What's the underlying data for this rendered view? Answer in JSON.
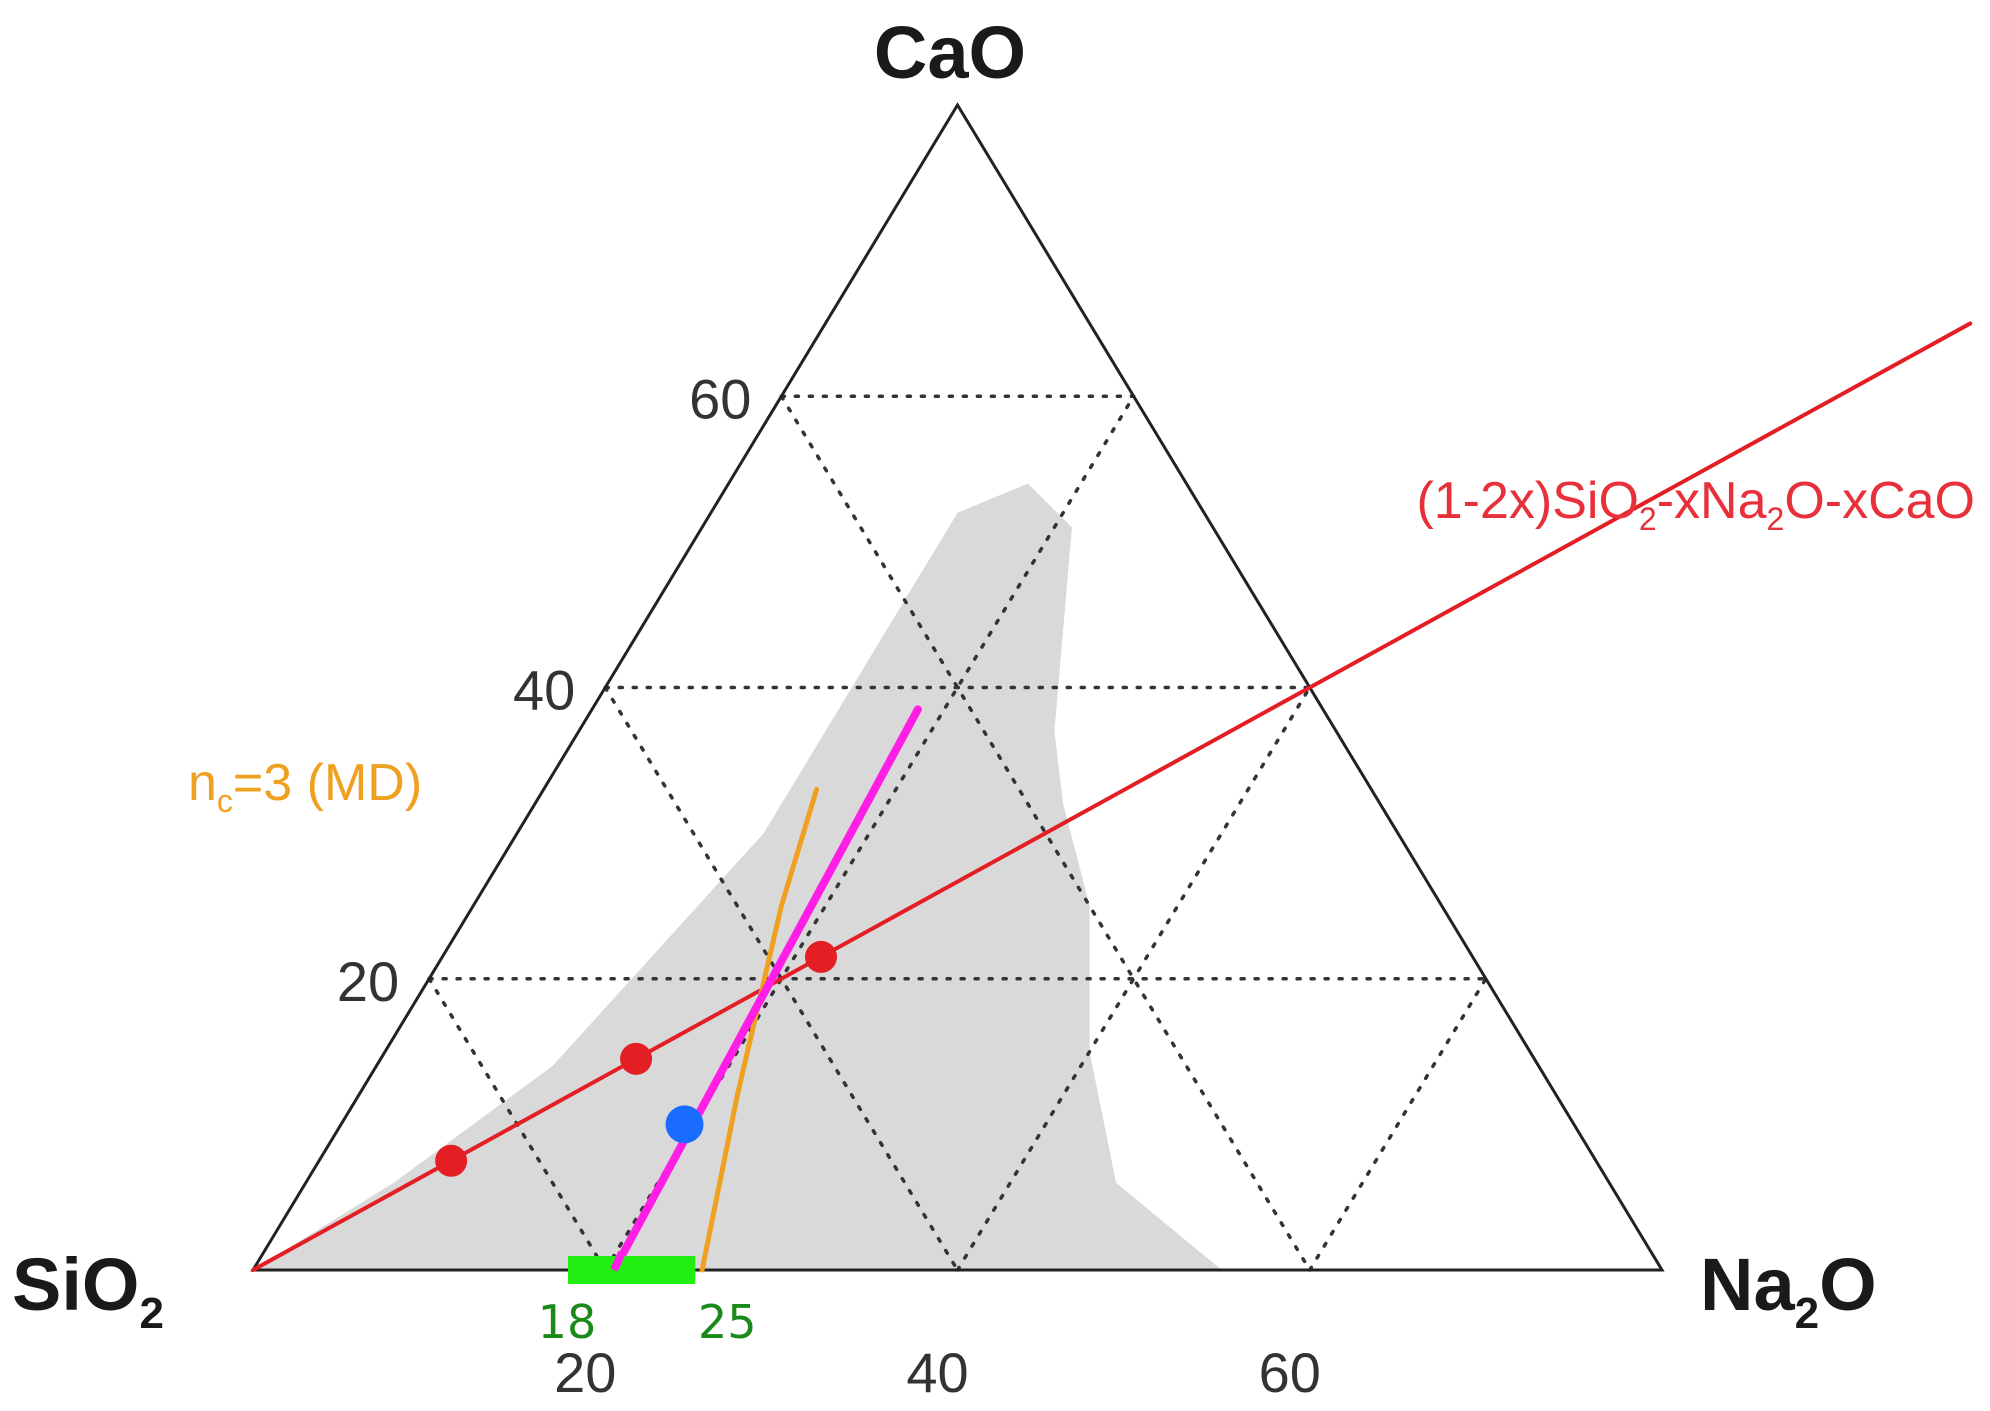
{
  "colors": {
    "region": "#d9d9d9",
    "red_line": "#e31e24",
    "orange_line": "#f0a020",
    "magenta_line": "#ff1ee6",
    "blue_point": "#1a6cff",
    "green_bar": "#22ee11",
    "green_text": "#1a8a1a"
  },
  "chart_data": {
    "type": "ternary",
    "vertices": {
      "bottom_left": {
        "base": "SiO",
        "sub": "2",
        "tail": ""
      },
      "bottom_right": {
        "base": "Na",
        "sub": "2",
        "tail": "O"
      },
      "top": {
        "base": "CaO",
        "sub": "",
        "tail": ""
      }
    },
    "axis_max": 80,
    "grid_step": 20,
    "grid": "dotted",
    "bottom_axis_ticks": [
      {
        "value": 20,
        "label": "20"
      },
      {
        "value": 40,
        "label": "40"
      },
      {
        "value": 60,
        "label": "60"
      }
    ],
    "left_axis_ticks": [
      {
        "value": 20,
        "label": "20"
      },
      {
        "value": 40,
        "label": "40"
      },
      {
        "value": 60,
        "label": "60"
      }
    ],
    "glass_region": [
      [
        0,
        0
      ],
      [
        55,
        0
      ],
      [
        46,
        6
      ],
      [
        40,
        15
      ],
      [
        35,
        25
      ],
      [
        30,
        32
      ],
      [
        27,
        37
      ],
      [
        24,
        44
      ],
      [
        21,
        51
      ],
      [
        17,
        54
      ],
      [
        14,
        52
      ],
      [
        14,
        40
      ],
      [
        14,
        30
      ],
      [
        10,
        14
      ],
      [
        5,
        6
      ],
      [
        0,
        0
      ]
    ],
    "series": [
      {
        "name_parts": [
          {
            "t": "(1-2x)SiO",
            "sub": false
          },
          {
            "t": "2",
            "sub": true
          },
          {
            "t": "-xNa",
            "sub": false
          },
          {
            "t": "2",
            "sub": true
          },
          {
            "t": "O-xCaO",
            "sub": false
          }
        ],
        "line": [
          [
            0,
            0
          ],
          [
            65,
            65
          ]
        ],
        "points": [
          [
            7.5,
            7.5
          ],
          [
            14.5,
            14.5
          ],
          [
            21.5,
            21.5
          ]
        ]
      },
      {
        "name_parts": [
          {
            "t": "n",
            "sub": false
          },
          {
            "t": "c",
            "sub": true
          },
          {
            "t": "=3 (MD)",
            "sub": false
          }
        ],
        "line": [
          [
            25.5,
            0
          ],
          [
            21.5,
            12
          ],
          [
            17.5,
            25
          ],
          [
            15.5,
            33
          ]
        ]
      },
      {
        "line": [
          [
            20.5,
            0
          ],
          [
            18.5,
            38.5
          ]
        ],
        "points": [
          [
            19.5,
            10
          ]
        ]
      }
    ],
    "range_marker": {
      "from": 18,
      "to": 25,
      "from_label": "18",
      "to_label": "25"
    }
  }
}
